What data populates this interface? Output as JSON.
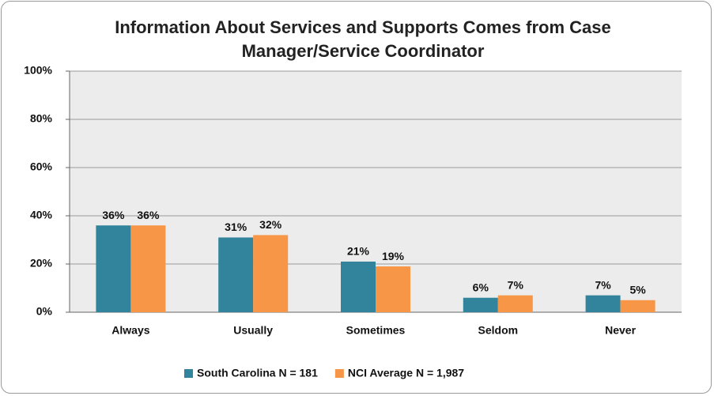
{
  "chart_data": {
    "type": "bar",
    "title": "Information About Services and Supports Comes from Case Manager/Service Coordinator",
    "categories": [
      "Always",
      "Usually",
      "Sometimes",
      "Seldom",
      "Never"
    ],
    "series": [
      {
        "name": "South Carolina N = 181",
        "color": "#31849b",
        "values": [
          36,
          31,
          21,
          6,
          7
        ],
        "value_labels": [
          "36%",
          "31%",
          "21%",
          "6%",
          "7%"
        ]
      },
      {
        "name": "NCI Average N = 1,987",
        "color": "#f79646",
        "values": [
          36,
          32,
          19,
          7,
          5
        ],
        "value_labels": [
          "36%",
          "32%",
          "19%",
          "7%",
          "5%"
        ]
      }
    ],
    "ylim": [
      0,
      100
    ],
    "yticks": [
      {
        "value": 0,
        "label": "0%"
      },
      {
        "value": 20,
        "label": "20%"
      },
      {
        "value": 40,
        "label": "40%"
      },
      {
        "value": 60,
        "label": "60%"
      },
      {
        "value": 80,
        "label": "80%"
      },
      {
        "value": 100,
        "label": "100%"
      }
    ],
    "grid": true,
    "legend": "bottom"
  }
}
